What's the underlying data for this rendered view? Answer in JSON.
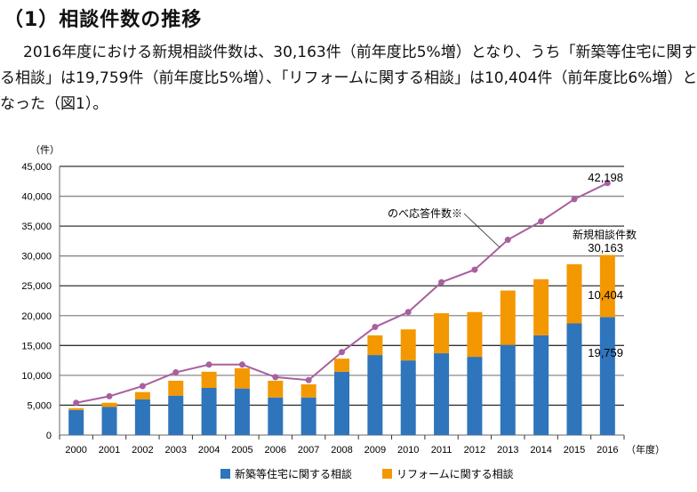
{
  "heading": "（1）相談件数の推移",
  "paragraph": [
    "2016年度における新規相談件数は、30,163件（前年度比5%増）となり、うち「新築等住宅に関す",
    "る相談」は19,759件（前年度比5%増）、「リフォームに関する相談」は10,404件（前年度比6%増）と",
    "なった（図1）。"
  ],
  "chart_data": {
    "type": "bar",
    "stacked": true,
    "y_unit_label": "（件）",
    "x_unit_label": "（年度）",
    "ylim": [
      0,
      45000
    ],
    "yticks": [
      "0",
      "5,000",
      "10,000",
      "15,000",
      "20,000",
      "25,000",
      "30,000",
      "35,000",
      "40,000",
      "45,000"
    ],
    "grid": true,
    "legend_position": "bottom",
    "categories": [
      "2000",
      "2001",
      "2002",
      "2003",
      "2004",
      "2005",
      "2006",
      "2007",
      "2008",
      "2009",
      "2010",
      "2011",
      "2012",
      "2013",
      "2014",
      "2015",
      "2016"
    ],
    "series": [
      {
        "name": "新築等住宅に関する相談",
        "color": "#2e75bc",
        "values": [
          4200,
          4700,
          6000,
          6600,
          7900,
          7800,
          6300,
          6300,
          10600,
          13400,
          12500,
          13700,
          13100,
          15100,
          16700,
          18700,
          19759
        ]
      },
      {
        "name": "リフォームに関する相談",
        "color": "#f39800",
        "values": [
          300,
          700,
          1200,
          2500,
          2700,
          3400,
          2800,
          2200,
          2200,
          3300,
          5200,
          6700,
          7500,
          9100,
          9400,
          9900,
          10404
        ]
      }
    ],
    "line_series": {
      "name": "のべ応答件数※",
      "color": "#a8609e",
      "values": [
        5400,
        6500,
        8200,
        10500,
        11800,
        11800,
        9700,
        9200,
        13900,
        18100,
        20600,
        25600,
        27700,
        32700,
        35800,
        39500,
        42198
      ]
    },
    "annotations": {
      "line_last": "42,198",
      "total_label": "新規相談件数",
      "total_value": "30,163",
      "reform_value": "10,404",
      "new_value": "19,759"
    }
  }
}
